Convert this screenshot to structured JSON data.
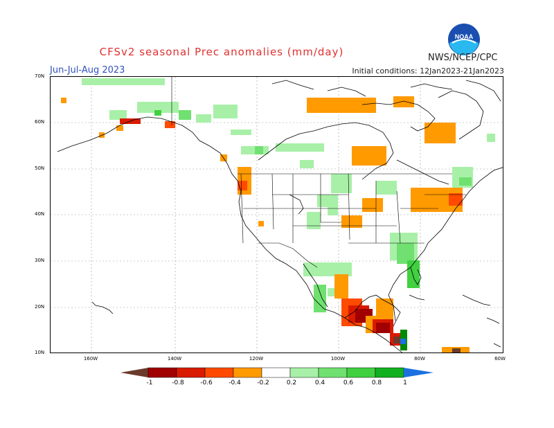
{
  "title": "CFSv2 seasonal Prec anomalies (mm/day)",
  "season": "Jun-Jul-Aug 2023",
  "initial_conditions": "Initial conditions: 12Jan2023-21Jan2023",
  "agency": "NWS/NCEP/CPC",
  "logo_text": "NOAA",
  "colors": {
    "title": "#e03030",
    "season": "#3050c0",
    "dry_strong": "#6b3a2a",
    "dry_1": "#a00000",
    "dry_2": "#d81a00",
    "dry_3": "#ff4a00",
    "dry_4": "#ff9a00",
    "wet_1": "#a8f0a8",
    "wet_2": "#70e070",
    "wet_3": "#40d040",
    "wet_4": "#10b020",
    "wet_5": "#008a00",
    "wet_strong": "#1c70e0"
  },
  "lat_labels": [
    "70N",
    "60N",
    "50N",
    "40N",
    "30N",
    "20N",
    "10N"
  ],
  "lon_labels": [
    "160W",
    "140W",
    "120W",
    "100W",
    "80W",
    "60W"
  ],
  "colorbar": {
    "values": [
      "-1",
      "-0.8",
      "-0.6",
      "-0.4",
      "-0.2",
      "0.2",
      "0.4",
      "0.6",
      "0.8",
      "1"
    ]
  }
}
